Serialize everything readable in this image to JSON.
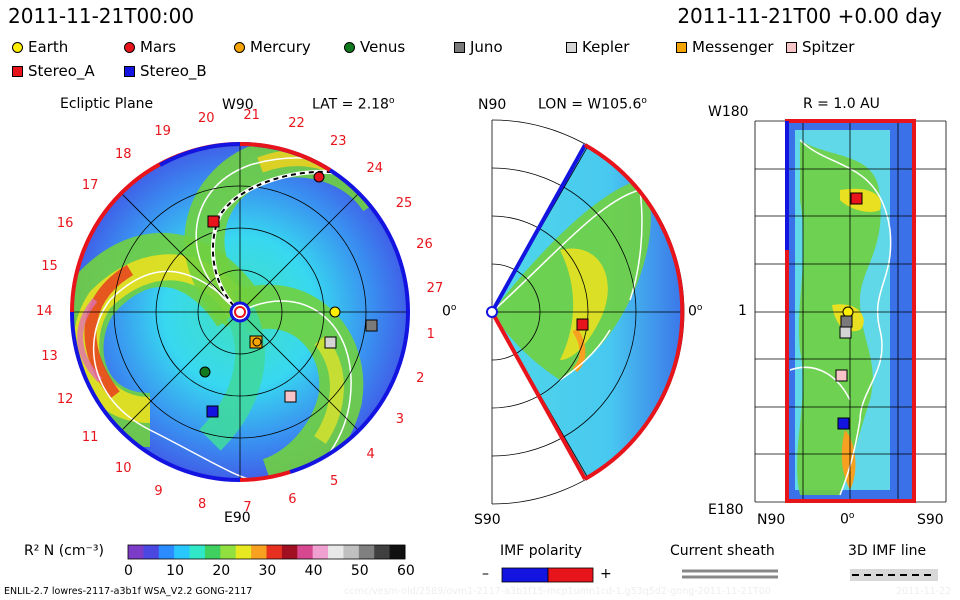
{
  "header": {
    "datetime_left": "2011-11-21T00:00",
    "datetime_right": "2011-11-21T00 +0.00 day"
  },
  "legend": [
    {
      "label": "Earth",
      "shape": "circle",
      "color": "#ffee00"
    },
    {
      "label": "Mars",
      "shape": "circle",
      "color": "#e8141c"
    },
    {
      "label": "Mercury",
      "shape": "circle",
      "color": "#f5a300"
    },
    {
      "label": "Venus",
      "shape": "circle",
      "color": "#127a1e"
    },
    {
      "label": "Juno",
      "shape": "square",
      "color": "#7a7a7a"
    },
    {
      "label": "Kepler",
      "shape": "square",
      "color": "#d4d4d4"
    },
    {
      "label": "Messenger",
      "shape": "square",
      "color": "#f5a300"
    },
    {
      "label": "Spitzer",
      "shape": "square",
      "color": "#f7c4c8"
    },
    {
      "label": "Stereo_A",
      "shape": "square",
      "color": "#e8141c"
    },
    {
      "label": "Stereo_B",
      "shape": "square",
      "color": "#1414e0"
    }
  ],
  "panels": {
    "ecliptic": {
      "title": "Ecliptic Plane",
      "top_label": "W90",
      "bottom_label": "E90",
      "right_label": "0",
      "lat_label": "LAT = 2.18",
      "carrington_numbers": [
        "1",
        "2",
        "3",
        "4",
        "5",
        "6",
        "7",
        "8",
        "9",
        "10",
        "11",
        "12",
        "13",
        "14",
        "15",
        "16",
        "17",
        "18",
        "19",
        "20",
        "21",
        "22",
        "23",
        "24",
        "25",
        "26",
        "27"
      ]
    },
    "meridional": {
      "top_label": "N90",
      "bottom_label": "S90",
      "right_label": "0",
      "lon_label": "LON = W105.6"
    },
    "radial": {
      "r_label": "R = 1.0 AU",
      "top_label": "W180",
      "mid_label": "1",
      "bottom_label": "E180",
      "bottom_left": "N90",
      "bottom_mid": "0",
      "bottom_right": "S90"
    }
  },
  "colorbar": {
    "label": "R² N (cm⁻³)",
    "ticks": [
      "0",
      "10",
      "20",
      "30",
      "40",
      "50",
      "60"
    ],
    "colors": [
      "#7d3cc8",
      "#4a48e0",
      "#2a8cff",
      "#28c8ff",
      "#30e8c8",
      "#40d060",
      "#90e040",
      "#e8e820",
      "#f8a020",
      "#e83020",
      "#a01020",
      "#d84890",
      "#f0a0d0",
      "#e8e8e8",
      "#c0c0c0",
      "#808080",
      "#404040",
      "#101010"
    ]
  },
  "imf": {
    "title": "IMF polarity",
    "minus": "–",
    "plus": "+",
    "neg_color": "#1414e0",
    "pos_color": "#e8141c"
  },
  "sheath": {
    "title": "Current sheath"
  },
  "imf3d": {
    "title": "3D IMF line"
  },
  "footer": {
    "left": "ENLIL-2.7 lowres-2117-a3b1f WSA_V2.2 GONG-2117",
    "right": "ccmc/vesm-old/2589/ovm1-2117-a3b1f15-mcp1umn1cd-1.g53q5d2-gong-2011-11-21T00",
    "right2": "2011-11-22"
  }
}
